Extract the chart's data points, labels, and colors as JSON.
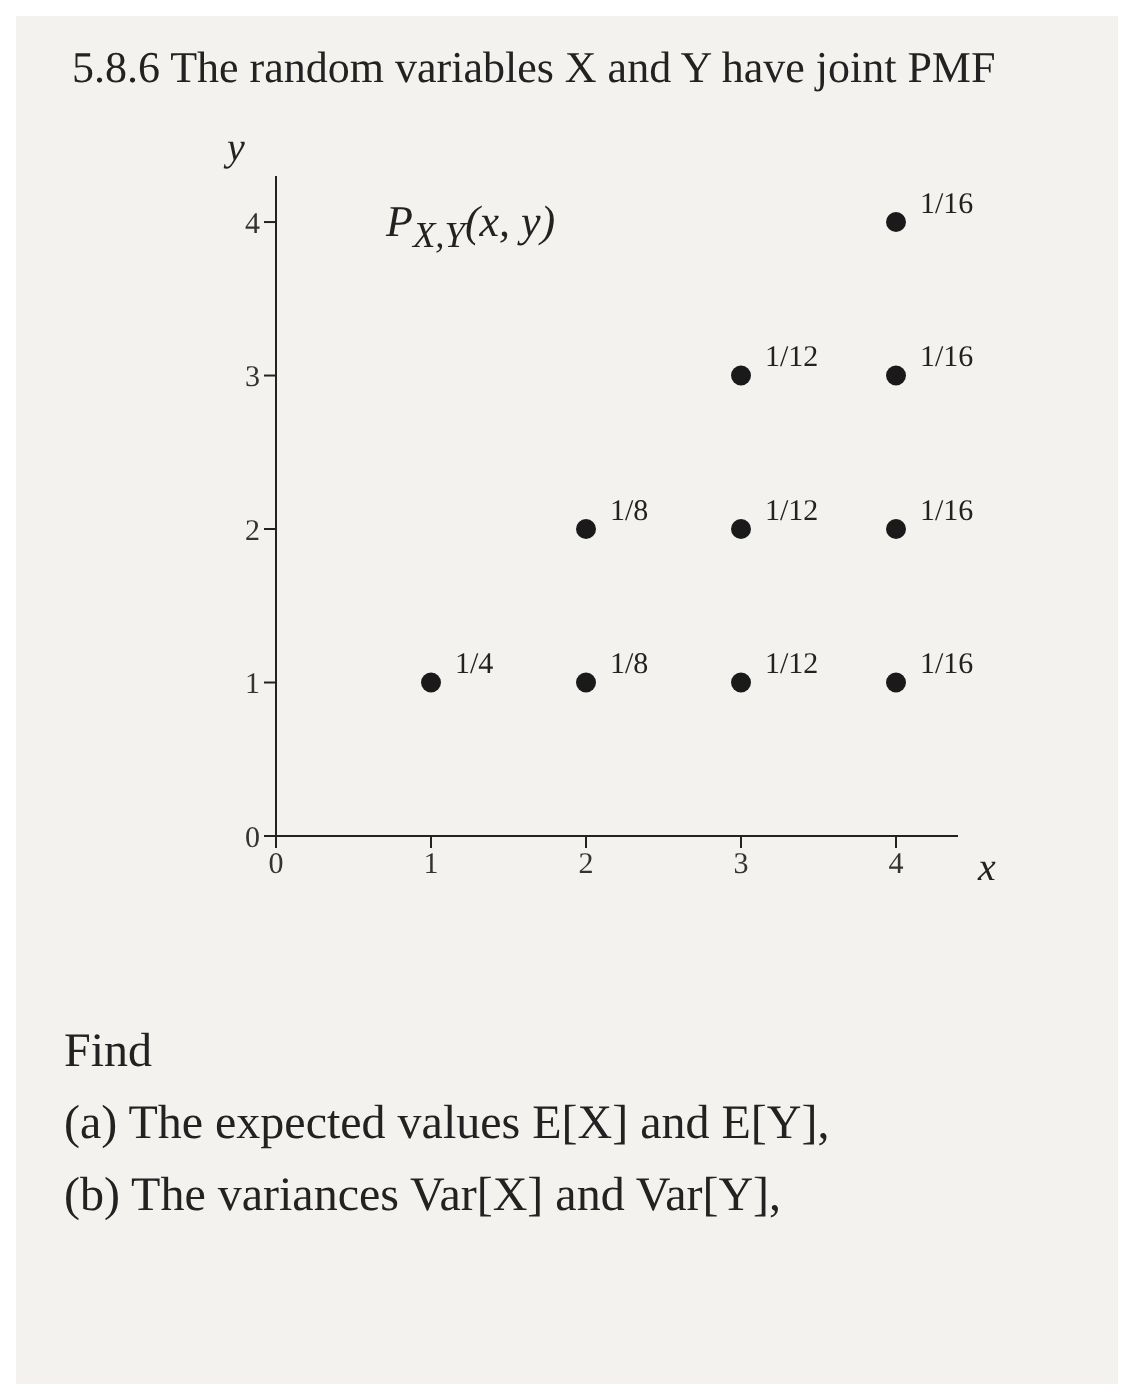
{
  "chart_data": {
    "type": "scatter",
    "title": "5.8.6 The random variables X and Y have joint PMF",
    "xlabel": "x",
    "ylabel": "y",
    "x": [
      1,
      2,
      2,
      3,
      3,
      3,
      4,
      4,
      4,
      4
    ],
    "values": [
      1,
      1,
      2,
      1,
      2,
      3,
      1,
      2,
      3,
      4
    ],
    "color": "#1a1a1a",
    "marker": "circle",
    "grid": false,
    "xlim": [
      0,
      4.4
    ],
    "ylim": [
      0,
      4.3
    ],
    "xticks": [
      0,
      1,
      2,
      3,
      4
    ],
    "yticks": [
      0,
      1,
      2,
      3,
      4
    ],
    "annotations": [
      "P$_{X,Y}$(x, y)",
      {
        "text": "1/4",
        "x": 1,
        "y": 1
      },
      {
        "text": "1/8",
        "x": 2,
        "y": 1
      },
      {
        "text": "1/8",
        "x": 2,
        "y": 2
      },
      {
        "text": "1/12",
        "x": 3,
        "y": 1
      },
      {
        "text": "1/12",
        "x": 3,
        "y": 2
      },
      {
        "text": "1/12",
        "x": 3,
        "y": 3
      },
      {
        "text": "1/16",
        "x": 4,
        "y": 1
      },
      {
        "text": "1/16",
        "x": 4,
        "y": 2
      },
      {
        "text": "1/16",
        "x": 4,
        "y": 3
      },
      {
        "text": "1/16",
        "x": 4,
        "y": 4
      },
      "Find",
      "(a) The expected values E[X] and E[Y],",
      "(b) The variances Var[X] and Var[Y],"
    ]
  }
}
